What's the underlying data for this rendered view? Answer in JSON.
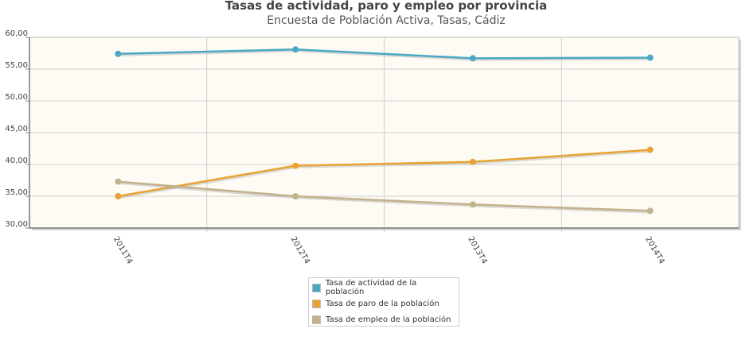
{
  "chart_data": {
    "type": "line",
    "title": "Tasas de actividad, paro y empleo por provincia",
    "subtitle": "Encuesta de Población Activa, Tasas,  Cádiz",
    "categories": [
      "2011T4",
      "2012T4",
      "2013T4",
      "2014T4"
    ],
    "y_ticks": [
      "30,00",
      "35,00",
      "40,00",
      "45,00",
      "50,00",
      "55,00",
      "60,00"
    ],
    "ylim": [
      30,
      60
    ],
    "grid": true,
    "legend_position": "bottom",
    "series": [
      {
        "name": "Tasa de actividad de la población",
        "color": "#4aa8c4",
        "values": [
          57.4,
          58.1,
          56.7,
          56.8
        ]
      },
      {
        "name": "Tasa de paro de la población",
        "color": "#e9a232",
        "values": [
          35.0,
          39.8,
          40.4,
          42.3
        ]
      },
      {
        "name": "Tasa de empleo de la población",
        "color": "#c2b28c",
        "values": [
          37.3,
          35.0,
          33.7,
          32.7
        ]
      }
    ]
  }
}
